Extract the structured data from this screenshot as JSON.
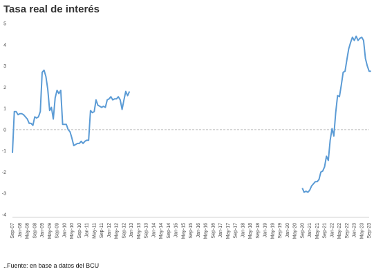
{
  "chart_data": {
    "type": "line",
    "title": "Tasa real de interés",
    "source": "..Fuente: en base a datos del BCU",
    "xlabel": "",
    "ylabel": "",
    "ylim": [
      -4,
      5
    ],
    "yticks": [
      -4,
      -3,
      -2,
      -1,
      0,
      1,
      2,
      3,
      4,
      5
    ],
    "grid": false,
    "zero_line": "dashed",
    "line_color": "#5b9bd5",
    "x_tick_labels": [
      "Sep-07",
      "Jan-08",
      "May-08",
      "Sep-08",
      "Jan-09",
      "May-09",
      "Sep-09",
      "Jan-10",
      "May-10",
      "Sep-10",
      "Jan-11",
      "May-11",
      "Sep-11",
      "Jan-12",
      "May-12",
      "Sep-12",
      "Jan-13",
      "May-13",
      "Sep-13",
      "Jan-14",
      "May-14",
      "Sep-14",
      "Jan-15",
      "May-15",
      "Sep-15",
      "Jan-16",
      "May-16",
      "Sep-16",
      "Jan-17",
      "May-17",
      "Sep-17",
      "Jan-18",
      "May-18",
      "Sep-18",
      "Jan-19",
      "May-19",
      "Sep-19",
      "Jan-20",
      "May-20",
      "Sep-20",
      "Jan-21",
      "May-21",
      "Sep-21",
      "Jan-22",
      "May-22",
      "Sep-22",
      "Jan-23",
      "May-23",
      "Sep-23"
    ],
    "series": [
      {
        "segments": [
          [
            [
              "Sep-07",
              -1.1
            ],
            [
              "Oct-07",
              0.85
            ],
            [
              "Nov-07",
              0.85
            ],
            [
              "Dec-07",
              0.7
            ],
            [
              "Jan-08",
              0.75
            ],
            [
              "Feb-08",
              0.75
            ],
            [
              "Mar-08",
              0.7
            ],
            [
              "Apr-08",
              0.6
            ],
            [
              "May-08",
              0.5
            ],
            [
              "Jun-08",
              0.3
            ],
            [
              "Jul-08",
              0.3
            ],
            [
              "Aug-08",
              0.2
            ],
            [
              "Sep-08",
              0.6
            ],
            [
              "Oct-08",
              0.55
            ],
            [
              "Nov-08",
              0.6
            ],
            [
              "Dec-08",
              0.85
            ],
            [
              "Jan-09",
              2.7
            ],
            [
              "Feb-09",
              2.8
            ],
            [
              "Mar-09",
              2.5
            ],
            [
              "Apr-09",
              1.9
            ],
            [
              "May-09",
              0.9
            ],
            [
              "Jun-09",
              1.05
            ],
            [
              "Jul-09",
              0.5
            ],
            [
              "Aug-09",
              1.5
            ],
            [
              "Sep-09",
              1.85
            ],
            [
              "Oct-09",
              1.7
            ],
            [
              "Nov-09",
              1.85
            ],
            [
              "Dec-09",
              0.25
            ],
            [
              "Jan-10",
              0.25
            ],
            [
              "Feb-10",
              0.25
            ],
            [
              "Mar-10",
              0.0
            ],
            [
              "Apr-10",
              -0.1
            ],
            [
              "May-10",
              -0.4
            ],
            [
              "Jun-10",
              -0.75
            ],
            [
              "Jul-10",
              -0.7
            ],
            [
              "Aug-10",
              -0.65
            ],
            [
              "Sep-10",
              -0.65
            ],
            [
              "Oct-10",
              -0.55
            ],
            [
              "Nov-10",
              -0.65
            ],
            [
              "Dec-10",
              -0.55
            ],
            [
              "Jan-11",
              -0.5
            ],
            [
              "Feb-11",
              -0.5
            ],
            [
              "Mar-11",
              0.9
            ],
            [
              "Apr-11",
              0.8
            ],
            [
              "May-11",
              0.85
            ],
            [
              "Jun-11",
              1.4
            ],
            [
              "Jul-11",
              1.15
            ],
            [
              "Aug-11",
              1.1
            ],
            [
              "Sep-11",
              1.05
            ],
            [
              "Oct-11",
              1.1
            ],
            [
              "Nov-11",
              1.05
            ],
            [
              "Dec-11",
              1.4
            ],
            [
              "Jan-12",
              1.45
            ],
            [
              "Feb-12",
              1.55
            ],
            [
              "Mar-12",
              1.4
            ],
            [
              "Apr-12",
              1.45
            ],
            [
              "May-12",
              1.45
            ],
            [
              "Jun-12",
              1.55
            ],
            [
              "Jul-12",
              1.4
            ],
            [
              "Aug-12",
              0.95
            ],
            [
              "Sep-12",
              1.4
            ],
            [
              "Oct-12",
              1.8
            ],
            [
              "Nov-12",
              1.6
            ],
            [
              "Dec-12",
              1.8
            ]
          ],
          [
            [
              "Sep-20",
              -2.75
            ],
            [
              "Oct-20",
              -2.95
            ],
            [
              "Nov-20",
              -2.9
            ],
            [
              "Dec-20",
              -2.95
            ],
            [
              "Jan-21",
              -2.85
            ],
            [
              "Feb-21",
              -2.65
            ],
            [
              "Mar-21",
              -2.55
            ],
            [
              "Apr-21",
              -2.45
            ],
            [
              "May-21",
              -2.45
            ],
            [
              "Jun-21",
              -2.35
            ],
            [
              "Jul-21",
              -2.0
            ],
            [
              "Aug-21",
              -1.95
            ],
            [
              "Sep-21",
              -1.75
            ],
            [
              "Oct-21",
              -1.25
            ],
            [
              "Nov-21",
              -1.45
            ],
            [
              "Dec-21",
              -0.5
            ],
            [
              "Jan-22",
              0.05
            ],
            [
              "Feb-22",
              -0.3
            ],
            [
              "Mar-22",
              0.8
            ],
            [
              "Apr-22",
              1.6
            ],
            [
              "May-22",
              1.55
            ],
            [
              "Jun-22",
              2.1
            ],
            [
              "Jul-22",
              2.7
            ],
            [
              "Aug-22",
              2.75
            ],
            [
              "Sep-22",
              3.3
            ],
            [
              "Oct-22",
              3.8
            ],
            [
              "Nov-22",
              4.1
            ],
            [
              "Dec-22",
              4.35
            ],
            [
              "Jan-23",
              4.2
            ],
            [
              "Feb-23",
              4.4
            ],
            [
              "Mar-23",
              4.2
            ],
            [
              "Apr-23",
              4.3
            ],
            [
              "May-23",
              4.35
            ],
            [
              "Jun-23",
              4.2
            ],
            [
              "Jul-23",
              3.35
            ],
            [
              "Aug-23",
              3.0
            ],
            [
              "Sep-23",
              2.75
            ],
            [
              "Oct-23",
              2.75
            ]
          ]
        ]
      }
    ]
  }
}
